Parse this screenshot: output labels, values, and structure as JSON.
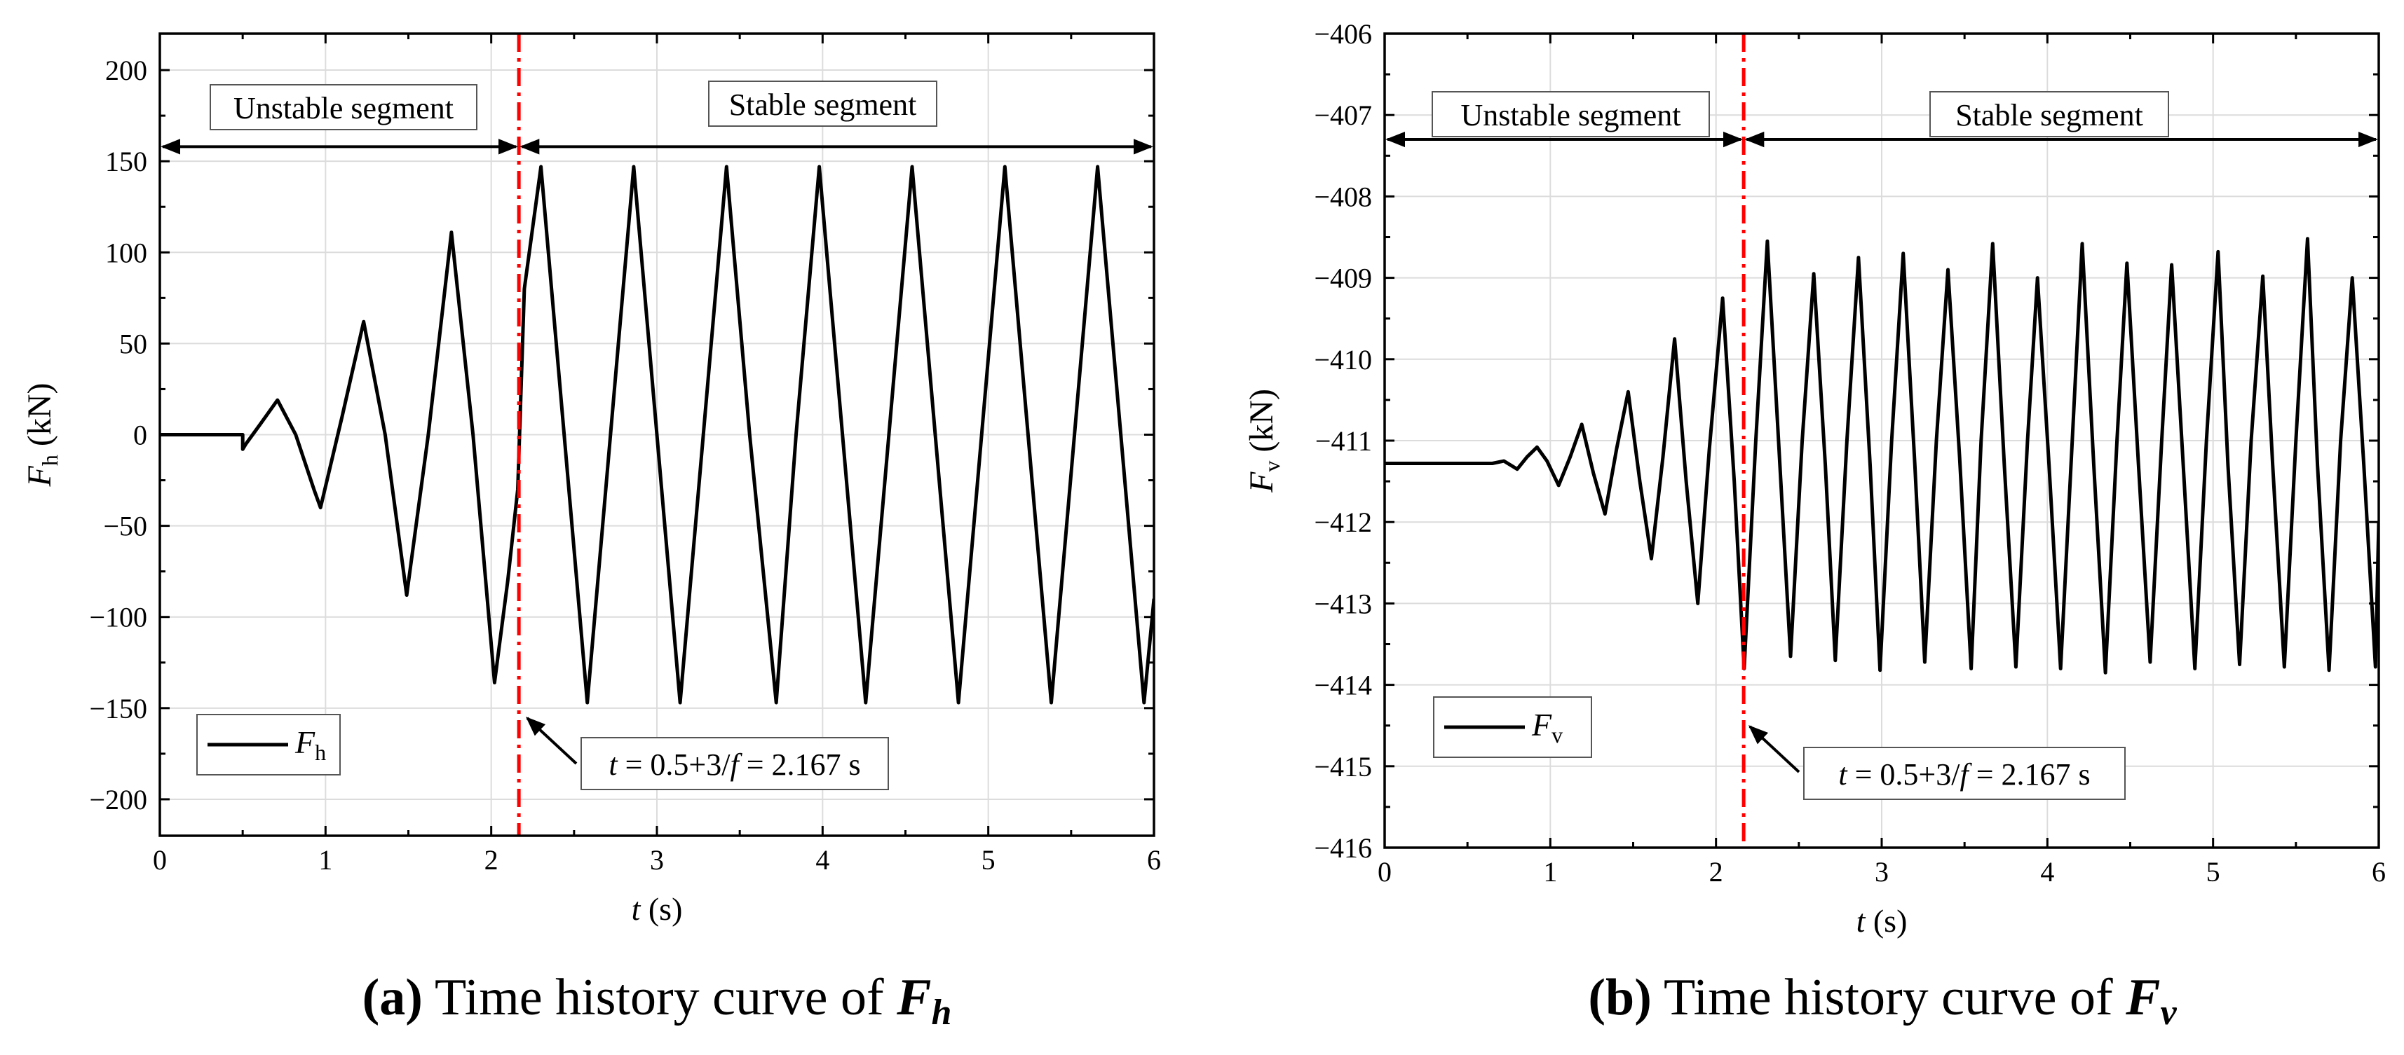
{
  "chart_data": [
    {
      "type": "line",
      "panel": "a",
      "caption_letter": "(a)",
      "caption_text": " Time history curve of ",
      "caption_symbol": "F",
      "caption_subscript": "h",
      "ylabel_symbol": "F",
      "ylabel_subscript": "h",
      "ylabel_unit": " (kN)",
      "xlabel_symbol": "t",
      "xlabel_unit": " (s)",
      "xlim": [
        0,
        6
      ],
      "ylim": [
        -220,
        220
      ],
      "xticks": [
        0,
        1,
        2,
        3,
        4,
        5,
        6
      ],
      "yticks": [
        -200,
        -150,
        -100,
        -50,
        0,
        50,
        100,
        150,
        200
      ],
      "xtick_labels": [
        "0",
        "1",
        "2",
        "3",
        "4",
        "5",
        "6"
      ],
      "ytick_labels": [
        "−200",
        "−150",
        "−100",
        "−50",
        "0",
        "50",
        "100",
        "150",
        "200"
      ],
      "grid": true,
      "legend_position": "bottom-left",
      "legend_symbol": "F",
      "legend_subscript": "h",
      "series": [
        {
          "name": "Fh",
          "color": "#000000",
          "x": [
            0,
            0.5,
            0.5,
            0.52,
            0.6,
            0.71,
            0.82,
            0.93,
            0.97,
            1.1,
            1.23,
            1.36,
            1.49,
            1.62,
            1.76,
            1.89,
            2.02,
            2.1,
            2.16,
            2.2,
            2.3,
            2.44,
            2.58,
            2.72,
            2.86,
            3.0,
            3.14,
            3.28,
            3.42,
            3.56,
            3.72,
            3.84,
            3.98,
            4.12,
            4.26,
            4.4,
            4.54,
            4.68,
            4.82,
            4.96,
            5.1,
            5.24,
            5.38,
            5.52,
            5.66,
            5.8,
            5.94,
            6.0
          ],
          "y": [
            0,
            0,
            -8,
            -5,
            5,
            19,
            0,
            -30,
            -40,
            10,
            62,
            0,
            -88,
            0,
            111,
            0,
            -136,
            -80,
            -30,
            80,
            147,
            0,
            -147,
            0,
            147,
            0,
            -147,
            0,
            147,
            0,
            -147,
            0,
            147,
            0,
            -147,
            0,
            147,
            0,
            -147,
            0,
            147,
            0,
            -147,
            0,
            147,
            0,
            -147,
            -90
          ]
        }
      ],
      "vline": {
        "x": 2.167,
        "color": "#ff0000",
        "style": "dash-dot",
        "annotation_prefix": "t",
        "annotation_mid": " = 0.5+3/",
        "annotation_f": "f",
        "annotation_value": " = 2.167 s"
      },
      "segments": {
        "unstable_label": "Unstable segment",
        "stable_label": "Stable segment",
        "arrow_y": 158
      }
    },
    {
      "type": "line",
      "panel": "b",
      "caption_letter": "(b)",
      "caption_text": " Time history curve of ",
      "caption_symbol": "F",
      "caption_subscript": "v",
      "ylabel_symbol": "F",
      "ylabel_subscript": "v",
      "ylabel_unit": " (kN)",
      "xlabel_symbol": "t",
      "xlabel_unit": " (s)",
      "xlim": [
        0,
        6
      ],
      "ylim": [
        -416,
        -406
      ],
      "xticks": [
        0,
        1,
        2,
        3,
        4,
        5,
        6
      ],
      "yticks": [
        -416,
        -415,
        -414,
        -413,
        -412,
        -411,
        -410,
        -409,
        -408,
        -407,
        -406
      ],
      "xtick_labels": [
        "0",
        "1",
        "2",
        "3",
        "4",
        "5",
        "6"
      ],
      "ytick_labels": [
        "−416",
        "−415",
        "−414",
        "−413",
        "−412",
        "−411",
        "−410",
        "−409",
        "−408",
        "−407",
        "−406"
      ],
      "grid": true,
      "legend_position": "bottom-left",
      "legend_symbol": "F",
      "legend_subscript": "v",
      "series": [
        {
          "name": "Fv",
          "color": "#000000",
          "x": [
            0,
            0.65,
            0.72,
            0.8,
            0.86,
            0.92,
            0.98,
            1.05,
            1.12,
            1.19,
            1.26,
            1.33,
            1.4,
            1.47,
            1.54,
            1.61,
            1.68,
            1.75,
            1.82,
            1.89,
            1.96,
            2.04,
            2.11,
            2.17,
            2.24,
            2.31,
            2.38,
            2.45,
            2.52,
            2.59,
            2.66,
            2.72,
            2.79,
            2.86,
            2.93,
            2.99,
            3.06,
            3.13,
            3.2,
            3.26,
            3.33,
            3.4,
            3.47,
            3.54,
            3.6,
            3.67,
            3.74,
            3.81,
            3.88,
            3.94,
            4.01,
            4.08,
            4.15,
            4.21,
            4.28,
            4.35,
            4.42,
            4.48,
            4.55,
            4.62,
            4.69,
            4.75,
            4.82,
            4.89,
            4.96,
            5.03,
            5.09,
            5.16,
            5.23,
            5.3,
            5.36,
            5.43,
            5.5,
            5.57,
            5.63,
            5.7,
            5.77,
            5.84,
            5.91,
            5.98,
            6.0
          ],
          "y": [
            -411.28,
            -411.28,
            -411.25,
            -411.35,
            -411.2,
            -411.08,
            -411.25,
            -411.55,
            -411.2,
            -410.8,
            -411.4,
            -411.9,
            -411.1,
            -410.4,
            -411.5,
            -412.45,
            -411.2,
            -409.75,
            -411.5,
            -413.0,
            -411.1,
            -409.25,
            -411.5,
            -413.8,
            -411.0,
            -408.55,
            -411.1,
            -413.65,
            -411.0,
            -408.95,
            -411.3,
            -413.7,
            -411.0,
            -408.75,
            -411.3,
            -413.82,
            -411.0,
            -408.7,
            -411.3,
            -413.72,
            -411.0,
            -408.9,
            -411.2,
            -413.8,
            -411.0,
            -408.58,
            -411.3,
            -413.78,
            -411.0,
            -409.0,
            -411.3,
            -413.8,
            -411.0,
            -408.58,
            -411.3,
            -413.85,
            -411.0,
            -408.82,
            -411.3,
            -413.72,
            -411.0,
            -408.84,
            -411.3,
            -413.8,
            -411.0,
            -408.68,
            -411.3,
            -413.75,
            -411.0,
            -408.98,
            -411.3,
            -413.78,
            -411.0,
            -408.52,
            -411.3,
            -413.82,
            -411.0,
            -409.0,
            -411.3,
            -413.78,
            -412.0
          ]
        }
      ],
      "vline": {
        "x": 2.167,
        "color": "#ff0000",
        "style": "dash-dot",
        "annotation_prefix": "t",
        "annotation_mid": " = 0.5+3/",
        "annotation_f": "f",
        "annotation_value": " = 2.167 s"
      },
      "segments": {
        "unstable_label": "Unstable segment",
        "stable_label": "Stable segment",
        "arrow_y": -407.3
      }
    }
  ]
}
